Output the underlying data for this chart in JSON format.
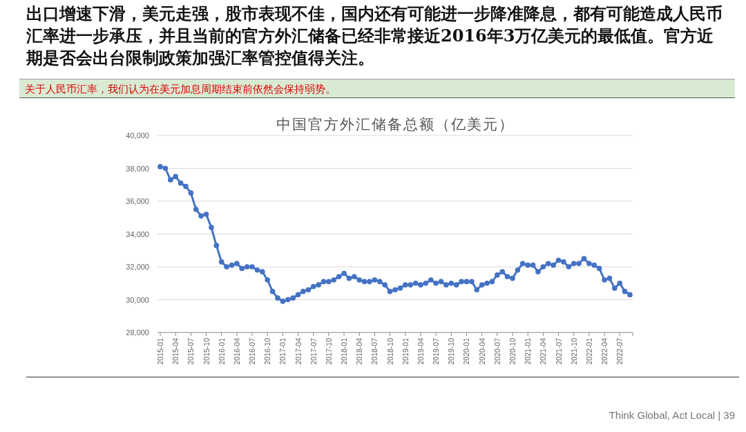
{
  "chart_data": {
    "type": "line",
    "title": "中国官方外汇储备总额（亿美元）",
    "annotations": [
      "出口增速下滑，美元走强，股市表现不佳，国内还有可能进一步降准降息，都有可能造成人民币汇率进一步承压，并且当前的官方外汇储备已经非常接近2016年3万亿美元的最低值。官方近期是否会出台限制政策加强汇率管控值得关注。",
      "关于人民币汇率，我们认为在美元加息周期结束前依然会保持弱势。",
      "Think Global, Act Local | 39"
    ],
    "categories": [
      "2015-01",
      null,
      null,
      "2015-04",
      null,
      null,
      "2015-07",
      null,
      null,
      "2015-10",
      null,
      null,
      "2016-01",
      null,
      null,
      "2016-04",
      null,
      null,
      "2016-07",
      null,
      null,
      "2016-10",
      null,
      null,
      "2017-01",
      null,
      null,
      "2017-04",
      null,
      null,
      "2017-07",
      null,
      null,
      "2017-10",
      null,
      null,
      "2018-01",
      null,
      null,
      "2018-04",
      null,
      null,
      "2018-07",
      null,
      null,
      "2018-10",
      null,
      null,
      "2019-01",
      null,
      null,
      "2019-04",
      null,
      null,
      "2019-07",
      null,
      null,
      "2019-10",
      null,
      null,
      "2020-01",
      null,
      null,
      "2020-04",
      null,
      null,
      "2020-07",
      null,
      null,
      "2020-10",
      null,
      null,
      "2021-01",
      null,
      null,
      "2021-04",
      null,
      null,
      "2021-07",
      null,
      null,
      "2021-10",
      null,
      null,
      "2022-01",
      null,
      null,
      "2022-04",
      null,
      null,
      "2022-07",
      null,
      null
    ],
    "values": [
      38100,
      38000,
      37300,
      37500,
      37100,
      36900,
      36500,
      35500,
      35100,
      35200,
      34400,
      33300,
      32300,
      32000,
      32100,
      32200,
      31900,
      32000,
      32000,
      31800,
      31700,
      31200,
      30500,
      30100,
      29900,
      30000,
      30100,
      30300,
      30500,
      30600,
      30800,
      30900,
      31100,
      31100,
      31200,
      31400,
      31600,
      31300,
      31400,
      31200,
      31100,
      31100,
      31200,
      31100,
      30900,
      30500,
      30600,
      30700,
      30900,
      30900,
      31000,
      30900,
      31000,
      31200,
      31000,
      31100,
      30900,
      31000,
      30900,
      31100,
      31100,
      31100,
      30600,
      30900,
      31000,
      31100,
      31500,
      31700,
      31400,
      31300,
      31800,
      32200,
      32100,
      32100,
      31700,
      32000,
      32200,
      32100,
      32400,
      32300,
      32000,
      32200,
      32200,
      32500,
      32200,
      32100,
      31900,
      31200,
      31300,
      30700,
      31000,
      30500,
      30300
    ],
    "color": "#4472c4",
    "ylim": [
      28000,
      40000
    ],
    "yticks": [
      {
        "value": 28000,
        "label": "28,000"
      },
      {
        "value": 30000,
        "label": "30,000"
      },
      {
        "value": 32000,
        "label": "32,000"
      },
      {
        "value": 34000,
        "label": "34,000"
      },
      {
        "value": 36000,
        "label": "36,000"
      },
      {
        "value": 38000,
        "label": "38,000"
      },
      {
        "value": 40000,
        "label": "40,000"
      }
    ],
    "grid": "y",
    "marker": "circle"
  }
}
